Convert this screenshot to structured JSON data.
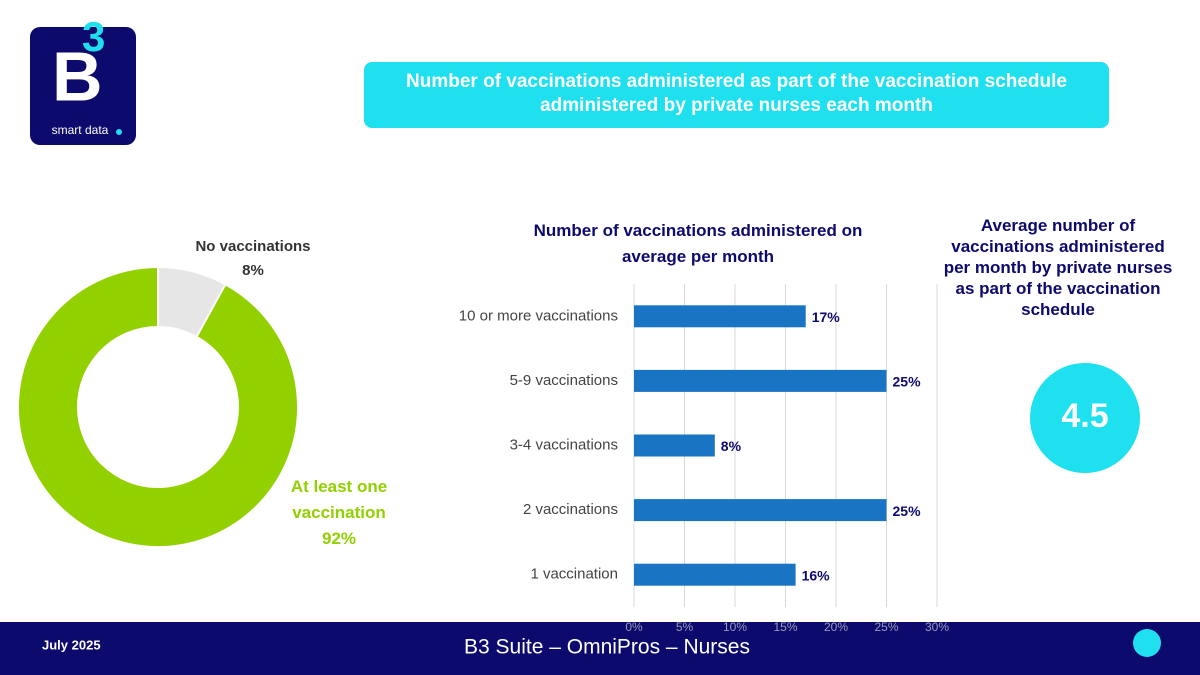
{
  "logo": {
    "letter": "B",
    "number": "3",
    "tagline": "smart data"
  },
  "header": {
    "title": "Number of vaccinations administered as part of the vaccination schedule administered by private nurses each month"
  },
  "chart_data": [
    {
      "type": "pie",
      "donut": true,
      "categories": [
        "No vaccinations",
        "At least one vaccination"
      ],
      "values": [
        8,
        92
      ],
      "value_labels": [
        "8%",
        "92%"
      ],
      "colors": [
        "#e6e6e6",
        "#92d000"
      ]
    },
    {
      "type": "bar",
      "orientation": "horizontal",
      "title": "Number of vaccinations administered on average per month",
      "categories": [
        "10 or more vaccinations",
        "5-9 vaccinations",
        "3-4 vaccinations",
        "2 vaccinations",
        "1 vaccination"
      ],
      "values": [
        17,
        25,
        8,
        25,
        16
      ],
      "value_labels": [
        "17%",
        "25%",
        "8%",
        "25%",
        "16%"
      ],
      "color": "#1a74c4",
      "xlim": [
        0,
        30
      ],
      "xticks": [
        {
          "value": 0,
          "label": "0%"
        },
        {
          "value": 5,
          "label": "5%"
        },
        {
          "value": 10,
          "label": "10%"
        },
        {
          "value": 15,
          "label": "15%"
        },
        {
          "value": 20,
          "label": "20%"
        },
        {
          "value": 25,
          "label": "25%"
        },
        {
          "value": 30,
          "label": "30%"
        }
      ],
      "grid": true
    }
  ],
  "kpi": {
    "title": "Average number of vaccinations administered per month by private nurses as part of the vaccination schedule",
    "value": 4.5
  },
  "footer": {
    "date": "July 2025",
    "title": "B3 Suite – OmniPros – Nurses"
  }
}
